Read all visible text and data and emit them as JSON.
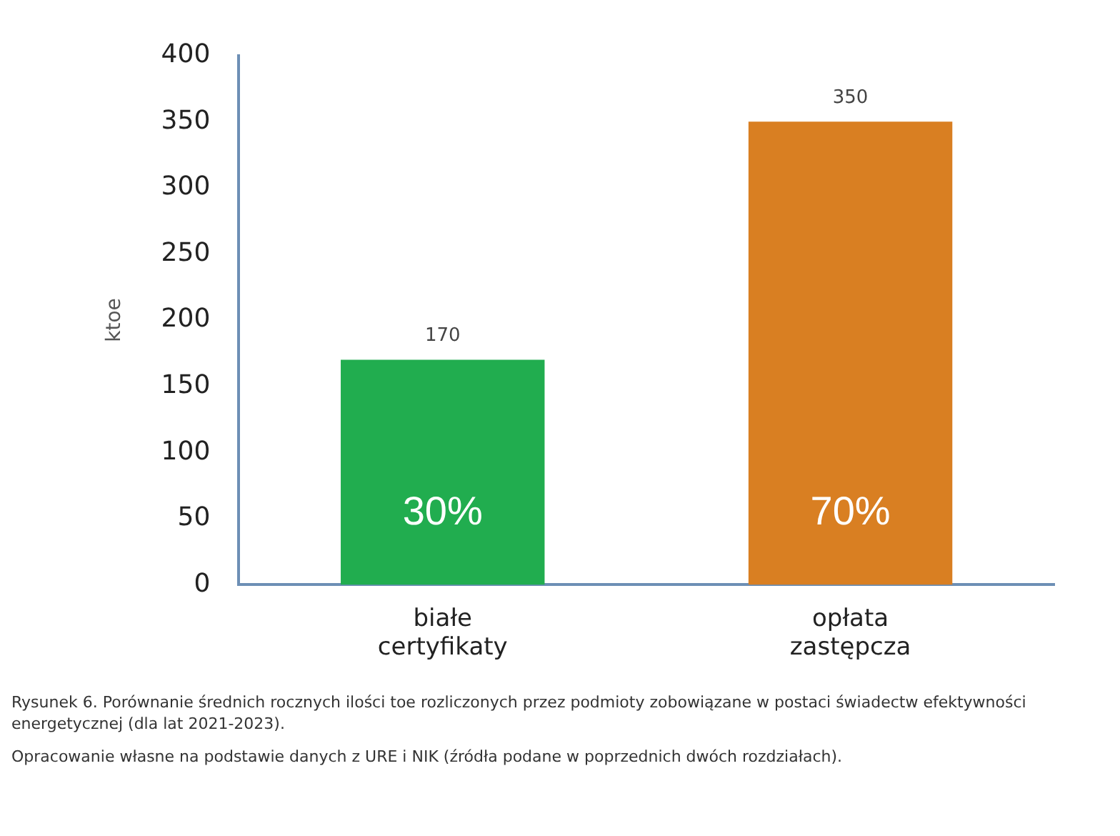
{
  "chart_data": {
    "type": "bar",
    "ylabel": "ktoe",
    "categories": [
      "białe certyfikaty",
      "opłata zastępcza"
    ],
    "values": [
      170,
      350
    ],
    "colors": [
      "#21ad4f",
      "#d97f22"
    ],
    "ylim": [
      0,
      400
    ],
    "yticks": [
      0,
      50,
      100,
      150,
      200,
      250,
      300,
      350,
      400
    ],
    "grid": false,
    "legend": false,
    "data_labels": true,
    "annotations": [
      "30%",
      "70%",
      "Rysunek 6. Porównanie średnich rocznych ilości toe rozliczonych przez podmioty zobowiązane w postaci świadectw efektywności energetycznej (dla lat 2021-2023).",
      "Opracowanie własne na podstawie danych z URE i NIK (źródła podane w poprzednich dwóch rozdziałach)."
    ]
  }
}
